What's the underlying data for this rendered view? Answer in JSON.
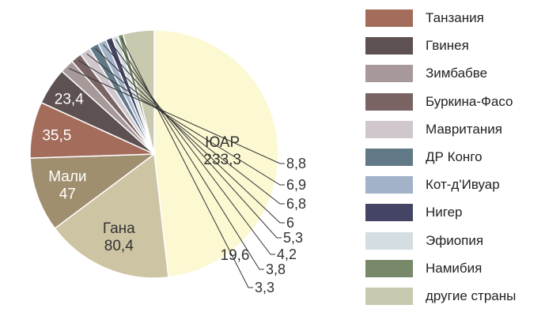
{
  "chart_data": {
    "type": "pie",
    "title": "",
    "series": [
      {
        "name": "ЮАР",
        "value": 233.3,
        "display": "233,3",
        "color": "#fbf8d2"
      },
      {
        "name": "Гана",
        "value": 80.4,
        "display": "80,4",
        "color": "#cdc4a3"
      },
      {
        "name": "Мали",
        "value": 47,
        "display": "47",
        "color": "#a08f6e"
      },
      {
        "name": "Танзания",
        "value": 35.5,
        "display": "35,5",
        "color": "#a46c5b"
      },
      {
        "name": "Гвинея",
        "value": 23.4,
        "display": "23,4",
        "color": "#5d5151"
      },
      {
        "name": "Зимбабве",
        "value": 8.8,
        "display": "8,8",
        "color": "#a7999a"
      },
      {
        "name": "Буркина-Фасо",
        "value": 6.9,
        "display": "6,9",
        "color": "#7a6463"
      },
      {
        "name": "Мавритания",
        "value": 6.8,
        "display": "6,8",
        "color": "#cfc7cd"
      },
      {
        "name": "ДР Конго",
        "value": 6,
        "display": "6",
        "color": "#617887"
      },
      {
        "name": "Кот-д'Ивуар",
        "value": 5.3,
        "display": "5,3",
        "color": "#a2b2c8"
      },
      {
        "name": "Нигер",
        "value": 4.2,
        "display": "4,2",
        "color": "#444464"
      },
      {
        "name": "Эфиопия",
        "value": 3.8,
        "display": "3,8",
        "color": "#d4dde2"
      },
      {
        "name": "Намибия",
        "value": 3.3,
        "display": "3,3",
        "color": "#788969"
      },
      {
        "name": "другие страны",
        "value": 19.6,
        "display": "19,6",
        "color": "#c8c9ae"
      }
    ],
    "legend_order": [
      "Танзания",
      "Гвинея",
      "Зимбабве",
      "Буркина-Фасо",
      "Мавритания",
      "ДР Конго",
      "Кот-д'Ивуар",
      "Нигер",
      "Эфиопия",
      "Намибия",
      "другие страны"
    ],
    "legend_position": "right"
  }
}
